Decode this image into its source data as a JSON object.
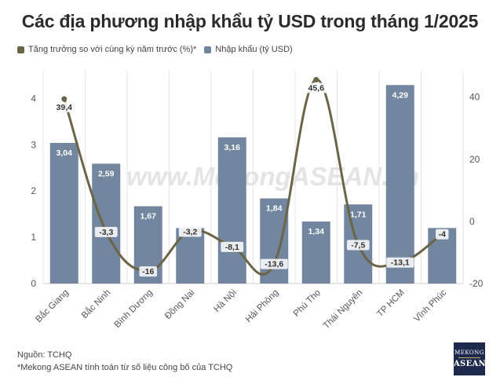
{
  "title": "Các địa phương nhập khẩu tỷ USD trong tháng 1/2025",
  "legend": {
    "line_label": "Tăng trưởng so với cùng kỳ năm trước (%)*",
    "bar_label": "Nhập khẩu (tỷ USD)"
  },
  "watermark": "www.MekongASEAN.vn",
  "footer": {
    "source": "Nguồn: TCHQ",
    "note": "*Mekong ASEAN tính toán từ số liệu công bố của TCHQ"
  },
  "logo": {
    "line1": "MEKONG",
    "line2": "ASEAN"
  },
  "colors": {
    "bar": "#7286a0",
    "line": "#6b6446",
    "grid": "#e6e6e6",
    "axis_text": "#555555"
  },
  "chart_data": {
    "type": "bar",
    "title": "Các địa phương nhập khẩu tỷ USD trong tháng 1/2025",
    "categories": [
      "Bắc Giang",
      "Bắc Ninh",
      "Bình Dương",
      "Đồng Nai",
      "Hà Nội",
      "Hải Phòng",
      "Phú Thọ",
      "Thái Nguyên",
      "TP HCM",
      "Vĩnh Phúc"
    ],
    "series": [
      {
        "name": "Nhập khẩu (tỷ USD)",
        "type": "bar",
        "axis": "left",
        "values": [
          3.04,
          2.59,
          1.67,
          1.2,
          3.16,
          1.84,
          1.34,
          1.71,
          4.29,
          1.2
        ],
        "labels": [
          "3,04",
          "2,59",
          "1,67",
          "",
          "3,16",
          "1,84",
          "1,34",
          "1,71",
          "4,29",
          ""
        ]
      },
      {
        "name": "Tăng trưởng so với cùng kỳ năm trước (%)*",
        "type": "line",
        "axis": "right",
        "values": [
          39.4,
          -3.3,
          -16,
          -3.2,
          -8.1,
          -13.6,
          45.6,
          -7.5,
          -13.1,
          -4
        ],
        "labels": [
          "39,4",
          "-3,3",
          "-16",
          "-3,2",
          "-8,1",
          "-13,6",
          "45,6",
          "-7,5",
          "-13,1",
          "-4"
        ]
      }
    ],
    "y_left": {
      "min": 0,
      "max": 4.6,
      "ticks": [
        "0",
        "1",
        "2",
        "3",
        "4"
      ],
      "tick_values": [
        0,
        1,
        2,
        3,
        4
      ]
    },
    "y_right": {
      "min": -20,
      "max": 48.5,
      "ticks": [
        "-20",
        "0",
        "20",
        "40"
      ],
      "tick_values": [
        -20,
        0,
        20,
        40
      ]
    },
    "grid": "vertical",
    "legend_position": "top-left"
  }
}
